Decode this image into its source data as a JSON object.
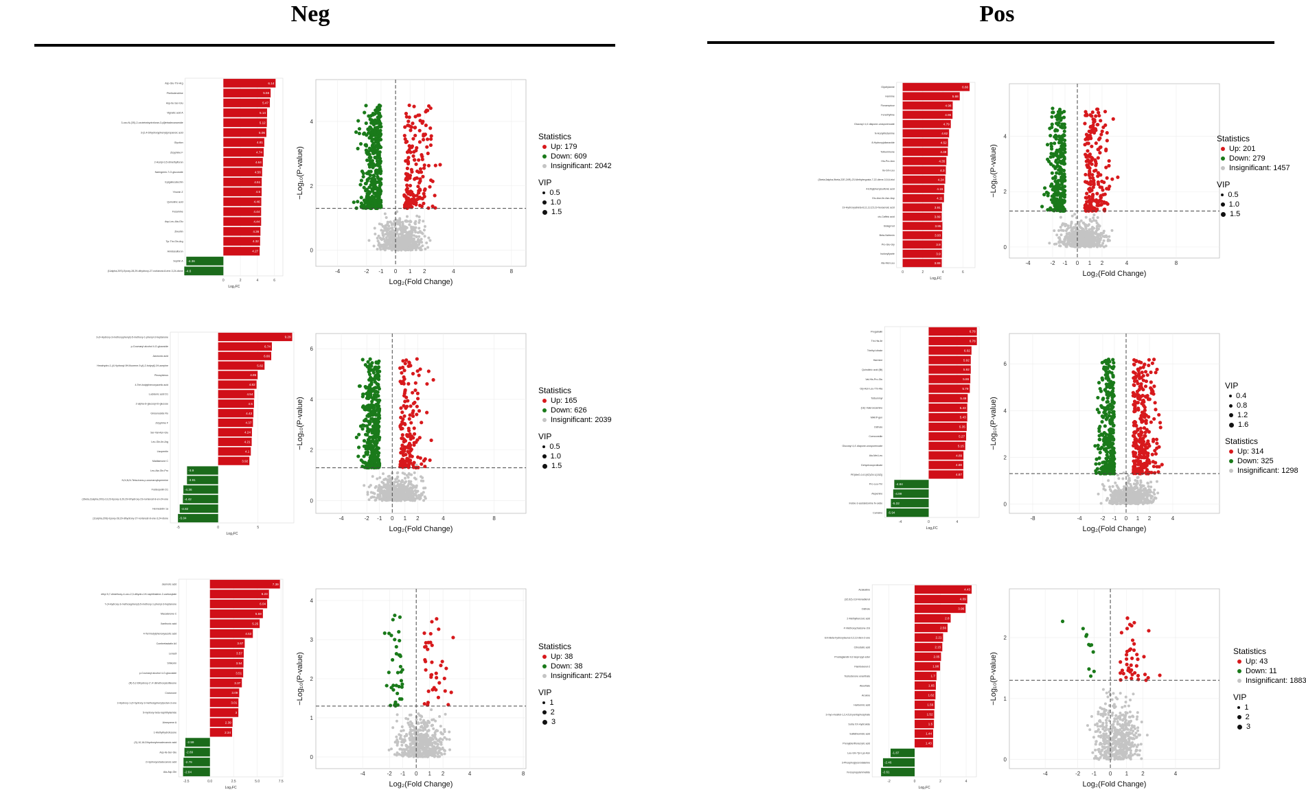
{
  "headers": {
    "neg": "Neg",
    "pos": "Pos"
  },
  "colors": {
    "up": "#d7191c",
    "down": "#1a7a1a",
    "ns": "#c4c4c4",
    "bar_up": "#d00f18",
    "bar_down": "#1b6b1b"
  },
  "common": {
    "bar_xlabel": "Log₂FC",
    "volcano_xlabel": "Log₂(Fold Change)",
    "volcano_ylabel": "−Log₁₀(P-value)",
    "stat_title": "Statistics",
    "vip_title": "VIP"
  },
  "chart_data": [
    {
      "id": "neg-bar-1",
      "type": "bar",
      "orientation": "horizontal",
      "xlabel": "Log₂FC",
      "xlim": [
        -4.5,
        7
      ],
      "xticks": [
        0,
        2,
        4,
        6
      ],
      "categories": [
        "Asp-Glu-Thr-Arg",
        "Phellodendrine",
        "Asp-Ile-Ser-Glu",
        "Vignatic acid A",
        "3-oxo-N-(3S)-2-oxotetrahydrofuran-3-yl]tetradecanamide",
        "3-(2,4-Dihydroxyphenyl)propanoic acid",
        "Glyciton",
        "Zizyphine F",
        "2-Acetyl-3,5-dimethylfuran",
        "Naringenin-7-O-glucoside",
        "Epigallocatechin",
        "Yinonin Z",
        "Quinolinic acid",
        "Fosamine",
        "Asp-Leu-Ala-Glu",
        "Ziwuhin",
        "Tyr-Thr-Gln-Arg",
        "Amidosulfuron",
        "Sophin A",
        "(11alpha,20S)-Epoxy-28,29-dihydroxy-27-norlanost-8-ene-3,24-dione"
      ],
      "values": [
        6.14,
        5.56,
        5.47,
        5.14,
        5.12,
        5.06,
        4.81,
        4.74,
        4.64,
        4.56,
        4.51,
        4.5,
        4.46,
        4.44,
        4.44,
        4.36,
        4.32,
        4.27,
        -4.36,
        -4.6
      ]
    },
    {
      "id": "neg-volcano-1",
      "type": "scatter",
      "xlim": [
        -5.5,
        9
      ],
      "ylim": [
        -0.5,
        5.3
      ],
      "xticks": [
        -4,
        -2,
        -1,
        0,
        1,
        2,
        4,
        8
      ],
      "yticks": [
        0,
        2,
        4
      ],
      "xlabel": "Log₂(Fold Change)",
      "ylabel": "−Log₁₀(P-value)",
      "thresholds": {
        "y": 1.3,
        "x": [
          0
        ]
      },
      "statistics": {
        "up": 179,
        "down": 609,
        "insignificant": 2042
      },
      "vip": [
        0.5,
        1.0,
        1.5
      ]
    },
    {
      "id": "neg-bar-2",
      "type": "bar",
      "orientation": "horizontal",
      "xlabel": "Log₂FC",
      "xlim": [
        -6,
        9.5
      ],
      "xticks": [
        -5,
        0,
        5
      ],
      "categories": [
        "3-(4-Hydroxy-3-methoxyphenyl)-5-methoxy-1-phenyl-3-heptanone",
        "p-Coumaryl alcohol 4-O-glucoside",
        "Jasmonic acid",
        "Hexahydro-1-(4-Hydroxyl-9H-fluorene-9-yl)-2-butyryl]-1H-azepine",
        "Pinosylvinus",
        "4-Tert-butylphenoxyacetic acid",
        "Lucidenic acid D1",
        "2-alpha-D-glucosyl-D-glucose",
        "Ginsenoside Ro",
        "Zizyphine F",
        "Ser-Val-Asn-Glu",
        "Leu-Gln-Ile-Arg",
        "Lisopentin",
        "Maldiamone C",
        "Leu-Ala-Gln-Pro",
        "N,N,N,N-Tetra-trans-p-coumaroylspermine",
        "Fosteopotin D1",
        "(3beta,11alpha,20S)-13,23-Epoxy-3,20,29-trihydroxy-23-norlanost-8-en-24-one",
        "Hennesidin 1a",
        "(11alpha,20S)-Epoxy-28,29-dihydroxy-27-norlanost-8-ene-3,24-dione"
      ],
      "values": [
        9.29,
        6.74,
        6.66,
        5.82,
        4.95,
        4.82,
        4.54,
        4.5,
        4.43,
        4.37,
        4.24,
        4.21,
        4.1,
        3.92,
        -3.9,
        -3.91,
        -4.36,
        -4.42,
        -4.82,
        -5.04
      ]
    },
    {
      "id": "neg-volcano-2",
      "type": "scatter",
      "xlim": [
        -6,
        10.5
      ],
      "ylim": [
        -0.5,
        6.6
      ],
      "xticks": [
        -4,
        -2,
        -1,
        0,
        1,
        2,
        4,
        8
      ],
      "yticks": [
        0,
        2,
        4,
        6
      ],
      "xlabel": "Log₂(Fold Change)",
      "ylabel": "−Log₁₀(P-value)",
      "thresholds": {
        "y": 1.3,
        "x": [
          0
        ]
      },
      "statistics": {
        "up": 165,
        "down": 626,
        "insignificant": 2039
      },
      "vip": [
        0.5,
        1.0,
        1.5
      ]
    },
    {
      "id": "neg-bar-3",
      "type": "bar",
      "orientation": "horizontal",
      "xlabel": "Log₂FC",
      "xlim": [
        -3.3,
        7.7
      ],
      "xticks": [
        -2.5,
        0,
        2.5,
        5,
        7.5
      ],
      "xticklabels": [
        "-2.5",
        "0.0",
        "2.5",
        "5.0",
        "7.5"
      ],
      "categories": [
        "Jasmolic acid",
        "ethyl 5,7-dimethoxy-4-oxo-2,3-dihydro-1H-naphthalene-2-carboxylate",
        "7-(4-Hydroxy-3-methoxyphenyl)-5-methoxy-1-phenyl-3-heptanone",
        "Macalanone C",
        "Xanthoxic acid",
        "4-Tert-butylphenoxyacetic acid",
        "Combretastatin A4",
        "Lenacil",
        "Shikonin",
        "p-Coumaryl alcohol 4-O-glucoside",
        "(R)-5,2-Dihydroxy-2',4'-dimethoxyisoflavone",
        "Crotonone",
        "3-Hydroxy-1-(4-hydroxy-3-methoxyphenyl)octan-3-one",
        "5-Hydroxy-beta-naphthylamide",
        "Aimeprene A",
        "1-Methylhydrofusone",
        "(S)-10,16-Dihydroxyhexadecanoic acid",
        "Asp-Ile-Ser-Glu",
        "2-Hydroxyoctadecanoic acid",
        "Ala-Asp-Gln"
      ],
      "values": [
        7.39,
        6.23,
        6.04,
        5.59,
        5.25,
        4.53,
        3.67,
        3.57,
        3.54,
        3.51,
        3.37,
        3.09,
        3.01,
        3,
        2.39,
        2.34,
        -2.59,
        -2.69,
        -2.79,
        -2.84
      ]
    },
    {
      "id": "neg-volcano-3",
      "type": "scatter",
      "xlim": [
        -7.5,
        8.2
      ],
      "ylim": [
        -0.3,
        4.3
      ],
      "xticks": [
        -4,
        -2,
        -1,
        0,
        1,
        2,
        4,
        8
      ],
      "yticks": [
        0,
        1,
        2,
        3,
        4
      ],
      "xlabel": "Log₂(Fold Change)",
      "ylabel": "−Log₁₀(P-value)",
      "thresholds": {
        "y": 1.3,
        "x": [
          0
        ]
      },
      "statistics": {
        "up": 38,
        "down": 38,
        "insignificant": 2754
      },
      "vip": [
        1,
        2,
        3
      ]
    },
    {
      "id": "pos-bar-1",
      "type": "bar",
      "orientation": "horizontal",
      "xlabel": "Log₂FC",
      "xlim": [
        -0.6,
        7.2
      ],
      "xticks": [
        0,
        2,
        4,
        6
      ],
      "categories": [
        "Glycitylanne",
        "Harmine",
        "Flonamptour",
        "Fenethylline",
        "Glucosyl 4,4'-diapone-urosporenoate",
        "N-Acetylhistamine",
        "8-Hydroxyjulianaxide",
        "Tolbuminone",
        "His-Pro-Asn",
        "Ile-Gln-Leu",
        "(3beta,5alpha,9beta,22E,24R)-23-Methylergosta-7,22-diene-3,5,6-triol",
        "4-Ethylphenylsulfonic acid",
        "Glu-Asn-Ile-Asn-Asp",
        "19-Hydroxyabieta-8,11,13,15,19-hexaenoic acid",
        "cis-Caffeic acid",
        "Bolagrrod",
        "Beta-Nafrenin",
        "Pro-Glu-Gly",
        "Isoloxyllyarie",
        "Ala-Met-Leu"
      ],
      "values": [
        6.66,
        5.68,
        4.98,
        4.96,
        4.79,
        4.62,
        4.52,
        4.49,
        4.35,
        4.3,
        4.24,
        4.15,
        4.11,
        3.91,
        3.89,
        3.95,
        3.93,
        3.9,
        3.9,
        3.89
      ]
    },
    {
      "id": "pos-volcano-1",
      "type": "scatter",
      "xlim": [
        -5.5,
        11.5
      ],
      "ylim": [
        -0.4,
        5.9
      ],
      "xticks": [
        -4,
        -2,
        -1,
        0,
        1,
        2,
        4,
        8
      ],
      "yticks": [
        0,
        2,
        4
      ],
      "xlabel": "Log₂(Fold Change)",
      "ylabel": "−Log₁₀(P-value)",
      "thresholds": {
        "y": 1.3,
        "x": [
          0
        ]
      },
      "statistics": {
        "up": 201,
        "down": 279,
        "insignificant": 1457
      },
      "vip": [
        0.5,
        1.0,
        1.5
      ]
    },
    {
      "id": "pos-bar-2",
      "type": "bar",
      "orientation": "horizontal",
      "xlabel": "Log₂FC",
      "xlim": [
        -6.2,
        7.1
      ],
      "xticks": [
        -4,
        0,
        4
      ],
      "categories": [
        "Pregabalin",
        "Thr-His-Ile",
        "Triethyl citrate",
        "Harmine",
        "Quinolinic acid (Bt)",
        "Val-His-Pro-Glu",
        "Gly-Asn-Leu-Thr-Ala",
        "Tolbuminyl",
        "(1E)-Valeroxoamine",
        "MAKP-gen",
        "Ostholo",
        "Coenzorstiin",
        "Glucosyl 4,4'-diapone-urosporenoate",
        "Ala-Met-Leu",
        "Dehydroxoprolinate",
        "PE(MeO-14:1(9Z)/24:1(15Z))",
        "Pro-Leu-Thr",
        "Alupenine",
        "Indole-3-acetaldoxime N-oxide",
        "Camsine"
      ],
      "values": [
        6.78,
        6.78,
        6.02,
        5.92,
        5.92,
        5.86,
        5.79,
        5.49,
        5.43,
        5.43,
        5.35,
        5.27,
        5.15,
        4.89,
        4.88,
        4.87,
        -4.84,
        -4.99,
        -5.32,
        -5.94
      ]
    },
    {
      "id": "pos-volcano-2",
      "type": "scatter",
      "xlim": [
        -10,
        8
      ],
      "ylim": [
        -0.4,
        7.3
      ],
      "xticks": [
        -8,
        -4,
        -2,
        -1,
        0,
        1,
        2,
        4
      ],
      "yticks": [
        0,
        2,
        4,
        6
      ],
      "xlabel": "Log₂(Fold Change)",
      "ylabel": "−Log₁₀(P-value)",
      "thresholds": {
        "y": 1.3,
        "x": [
          0
        ]
      },
      "statistics": {
        "up": 314,
        "down": 325,
        "insignificant": 1298
      },
      "vip": [
        0.4,
        0.8,
        1.2,
        1.6
      ]
    },
    {
      "id": "pos-bar-3",
      "type": "bar",
      "orientation": "horizontal",
      "xlabel": "Log₂FC",
      "xlim": [
        -3.3,
        4.8
      ],
      "xticks": [
        -2,
        0,
        2,
        4
      ],
      "categories": [
        "Azaleatine",
        "(3Z,6Z)-3,6-Nonadienol",
        "Ostholo",
        "2-Methylbenzoic acid",
        "4'-Methoxychalcone-3'ol",
        "Ent-Beta-hydroxylaurus-12,13-dien-2-one",
        "Citrostatic acid",
        "Prostaglandin E2-isopropyl ester",
        "Flambolenol-2",
        "Testosterone enanthate",
        "Aleuritate",
        "Aroxine",
        "Harbulmic acid",
        "3-myo-Inositol-1,2,4,5,6-pentaphosphate",
        "Sotra XX-Hydroxide",
        "Sulfathiomidic acid",
        "Prenylpterifloracrylic acid",
        "Leu-Gln-Tyr-Lys-Asn",
        "3-Phosphoglycerolalanine",
        "N-isopropylammelide"
      ],
      "values": [
        4.43,
        4.09,
        3.96,
        2.8,
        2.56,
        2.21,
        2.15,
        2.05,
        1.98,
        1.7,
        1.65,
        1.62,
        1.56,
        1.52,
        1.5,
        1.44,
        1.43,
        -1.87,
        -2.46,
        -2.61
      ]
    },
    {
      "id": "pos-volcano-3",
      "type": "scatter",
      "xlim": [
        -6.2,
        6.7
      ],
      "ylim": [
        -0.15,
        2.8
      ],
      "xticks": [
        -4,
        -2,
        -1,
        0,
        1,
        2,
        4
      ],
      "yticks": [
        0,
        1,
        2
      ],
      "xlabel": "Log₂(Fold Change)",
      "ylabel": "−Log₁₀(P-value)",
      "thresholds": {
        "y": 1.3,
        "x": [
          0
        ]
      },
      "statistics": {
        "up": 43,
        "down": 11,
        "insignificant": 1883
      },
      "vip": [
        1,
        2,
        3
      ]
    }
  ]
}
